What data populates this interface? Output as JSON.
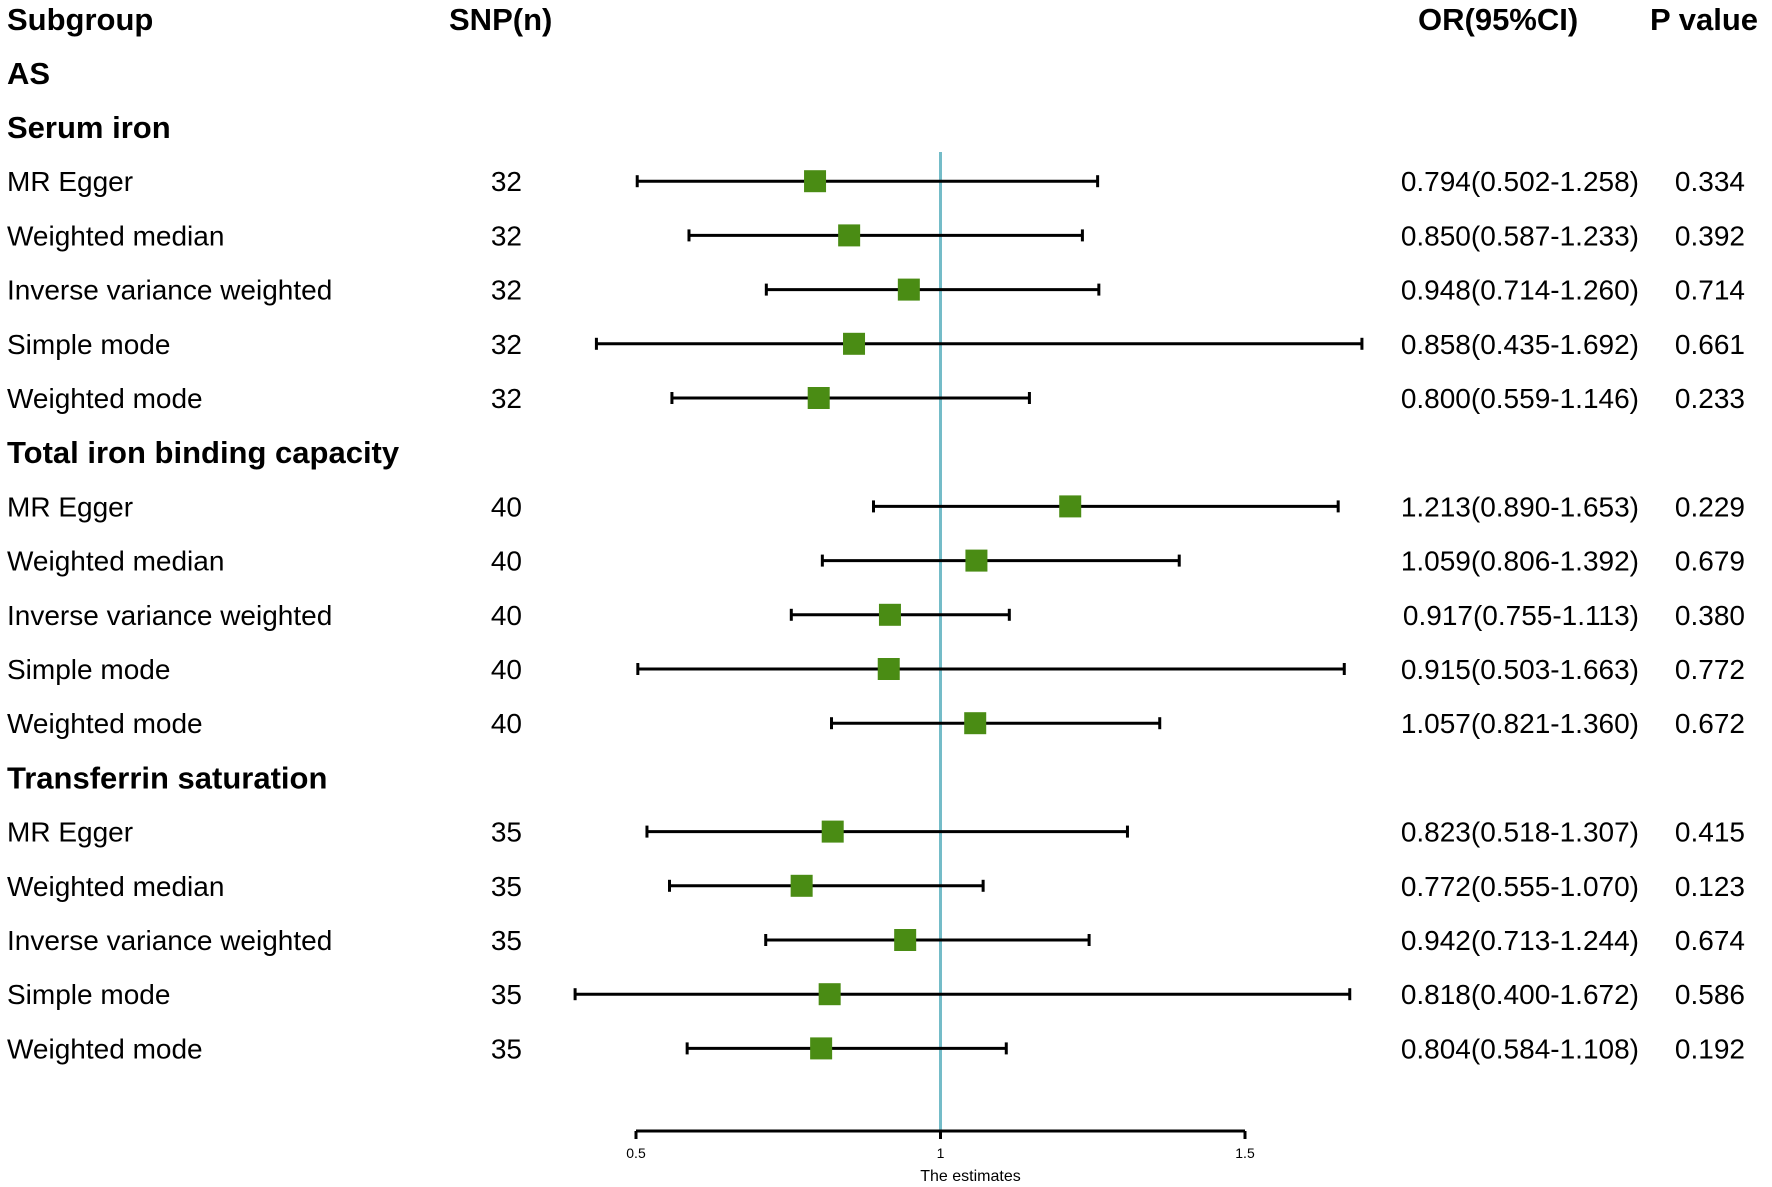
{
  "chart_data": {
    "type": "forest",
    "headers": {
      "subgroup": "Subgroup",
      "snp": "SNP(n)",
      "or": "OR(95%CI)",
      "p": "P value"
    },
    "outcome": "AS",
    "groups": [
      {
        "name": "Serum iron",
        "rows": [
          {
            "method": "MR Egger",
            "snp": "32",
            "or": 0.794,
            "lo": 0.502,
            "hi": 1.258,
            "or_text": "0.794(0.502-1.258)",
            "p": "0.334"
          },
          {
            "method": "Weighted median",
            "snp": "32",
            "or": 0.85,
            "lo": 0.587,
            "hi": 1.233,
            "or_text": "0.850(0.587-1.233)",
            "p": "0.392"
          },
          {
            "method": "Inverse variance weighted",
            "snp": "32",
            "or": 0.948,
            "lo": 0.714,
            "hi": 1.26,
            "or_text": "0.948(0.714-1.260)",
            "p": "0.714"
          },
          {
            "method": "Simple mode",
            "snp": "32",
            "or": 0.858,
            "lo": 0.435,
            "hi": 1.692,
            "or_text": "0.858(0.435-1.692)",
            "p": "0.661"
          },
          {
            "method": "Weighted mode",
            "snp": "32",
            "or": 0.8,
            "lo": 0.559,
            "hi": 1.146,
            "or_text": "0.800(0.559-1.146)",
            "p": "0.233"
          }
        ]
      },
      {
        "name": "Total iron binding capacity",
        "rows": [
          {
            "method": "MR Egger",
            "snp": "40",
            "or": 1.213,
            "lo": 0.89,
            "hi": 1.653,
            "or_text": "1.213(0.890-1.653)",
            "p": "0.229"
          },
          {
            "method": "Weighted median",
            "snp": "40",
            "or": 1.059,
            "lo": 0.806,
            "hi": 1.392,
            "or_text": "1.059(0.806-1.392)",
            "p": "0.679"
          },
          {
            "method": "Inverse variance weighted",
            "snp": "40",
            "or": 0.917,
            "lo": 0.755,
            "hi": 1.113,
            "or_text": "0.917(0.755-1.113)",
            "p": "0.380"
          },
          {
            "method": "Simple mode",
            "snp": "40",
            "or": 0.915,
            "lo": 0.503,
            "hi": 1.663,
            "or_text": "0.915(0.503-1.663)",
            "p": "0.772"
          },
          {
            "method": "Weighted mode",
            "snp": "40",
            "or": 1.057,
            "lo": 0.821,
            "hi": 1.36,
            "or_text": "1.057(0.821-1.360)",
            "p": "0.672"
          }
        ]
      },
      {
        "name": "Transferrin saturation",
        "rows": [
          {
            "method": "MR Egger",
            "snp": "35",
            "or": 0.823,
            "lo": 0.518,
            "hi": 1.307,
            "or_text": "0.823(0.518-1.307)",
            "p": "0.415"
          },
          {
            "method": "Weighted median",
            "snp": "35",
            "or": 0.772,
            "lo": 0.555,
            "hi": 1.07,
            "or_text": "0.772(0.555-1.070)",
            "p": "0.123"
          },
          {
            "method": "Inverse variance weighted",
            "snp": "35",
            "or": 0.942,
            "lo": 0.713,
            "hi": 1.244,
            "or_text": "0.942(0.713-1.244)",
            "p": "0.674"
          },
          {
            "method": "Simple mode",
            "snp": "35",
            "or": 0.818,
            "lo": 0.4,
            "hi": 1.672,
            "or_text": "0.818(0.400-1.672)",
            "p": "0.586"
          },
          {
            "method": "Weighted mode",
            "snp": "35",
            "or": 0.804,
            "lo": 0.584,
            "hi": 1.108,
            "or_text": "0.804(0.584-1.108)",
            "p": "0.192"
          }
        ]
      }
    ],
    "x_axis": {
      "label": "The estimates",
      "ticks": [
        0.5,
        1,
        1.5
      ],
      "tick_labels": [
        "0.5",
        "1",
        "1.5"
      ],
      "xlim": [
        0.5,
        1.5
      ],
      "reference": 1
    },
    "colors": {
      "marker": "#4a8c14",
      "reference_line": "#74bcc8",
      "ci_line": "#000000"
    }
  }
}
